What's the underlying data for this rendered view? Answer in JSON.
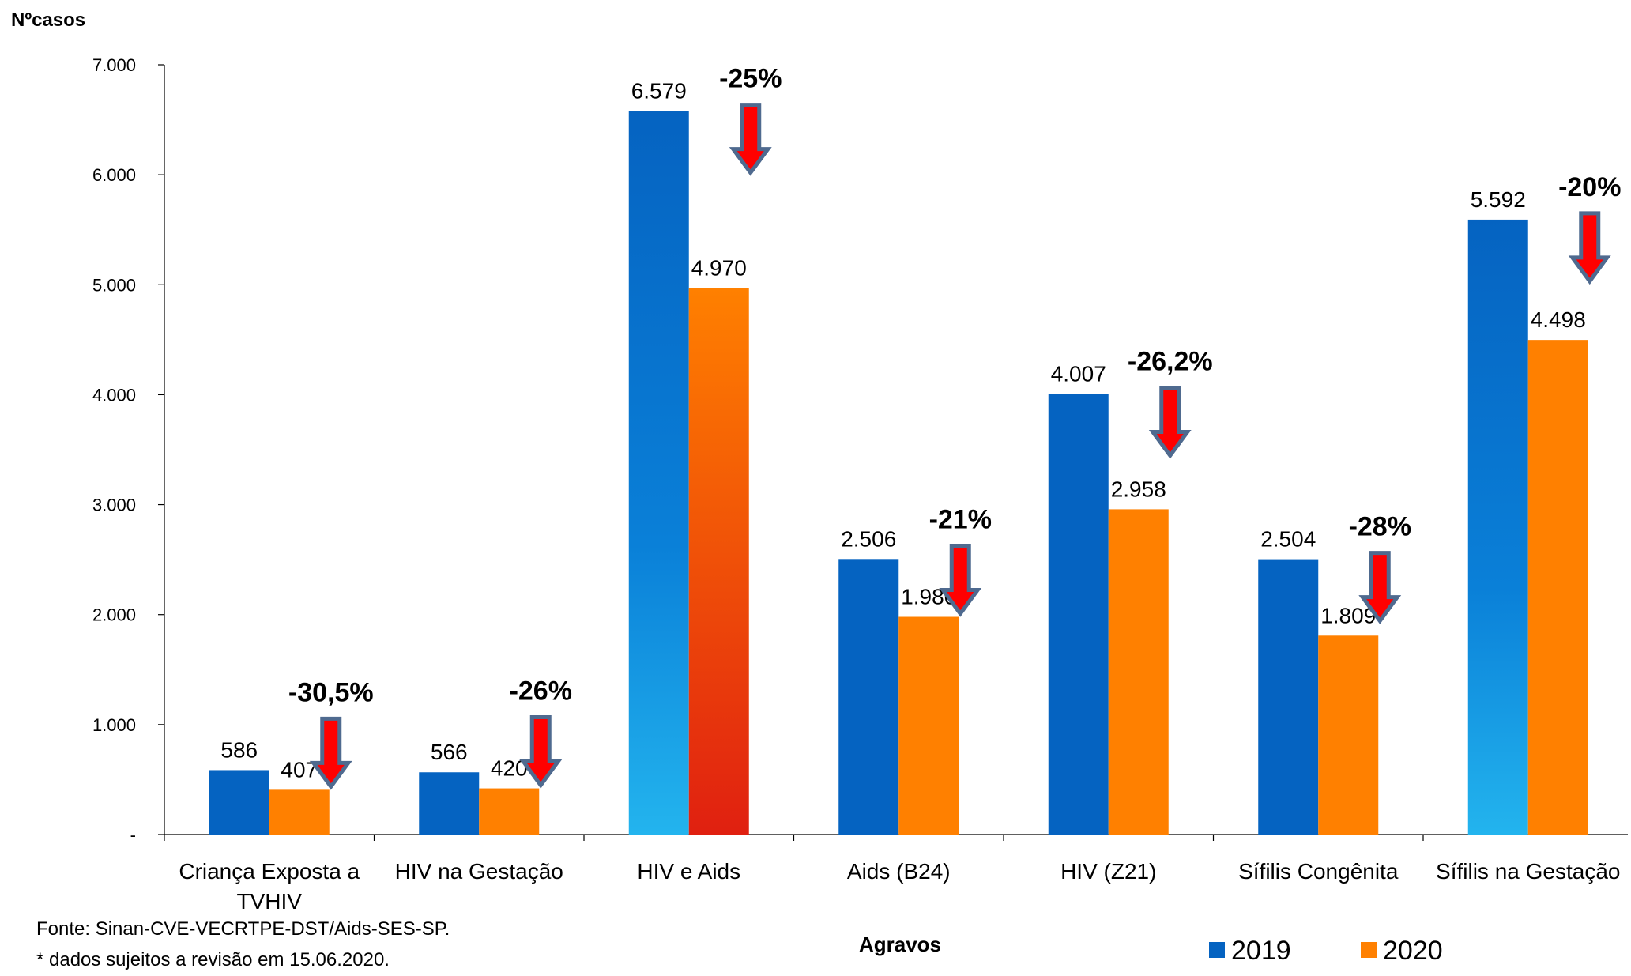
{
  "chart_data": {
    "type": "bar",
    "ylabel": "Nºcasos",
    "xlabel": "Agravos",
    "ylim": [
      0,
      7000
    ],
    "yticks": [
      {
        "value": 0,
        "label": "-"
      },
      {
        "value": 1000,
        "label": "1.000"
      },
      {
        "value": 2000,
        "label": "2.000"
      },
      {
        "value": 3000,
        "label": "3.000"
      },
      {
        "value": 4000,
        "label": "4.000"
      },
      {
        "value": 5000,
        "label": "5.000"
      },
      {
        "value": 6000,
        "label": "6.000"
      },
      {
        "value": 7000,
        "label": "7.000"
      }
    ],
    "categories": [
      "Criança Exposta a TVHIV",
      "HIV na Gestação",
      "HIV e Aids",
      "Aids (B24)",
      "HIV (Z21)",
      "Sífilis Congênita",
      "Sífilis na Gestação"
    ],
    "series": [
      {
        "name": "2019",
        "color": "#0563C1",
        "values": [
          586,
          566,
          6579,
          2506,
          4007,
          2504,
          5592
        ],
        "labels": [
          "586",
          "566",
          "6.579",
          "2.506",
          "4.007",
          "2.504",
          "5.592"
        ]
      },
      {
        "name": "2020",
        "color": "#FF8000",
        "values": [
          407,
          420,
          4970,
          1980,
          2958,
          1809,
          4498
        ],
        "labels": [
          "407",
          "420",
          "4.970",
          "1.980",
          "2.958",
          "1.809",
          "4.498"
        ]
      }
    ],
    "annotations": [
      "-30,5%",
      "-26%",
      "-25%",
      "-21%",
      "-26,2%",
      "-28%",
      "-20%"
    ],
    "legend": "bottom-right",
    "grid": false
  },
  "footnotes": {
    "source": "Fonte: Sinan-CVE-VECRTPE-DST/Aids-SES-SP.",
    "note": "* dados sujeitos a revisão em 15.06.2020."
  },
  "colors": {
    "arrow_fill": "#FF0000",
    "arrow_outline": "#4F6A8F"
  }
}
